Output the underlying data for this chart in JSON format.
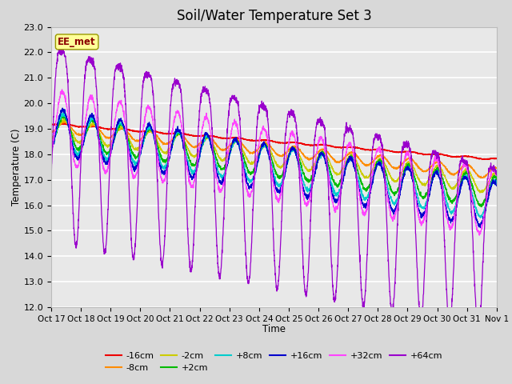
{
  "title": "Soil/Water Temperature Set 3",
  "xlabel": "Time",
  "ylabel": "Temperature (C)",
  "ylim": [
    12.0,
    23.0
  ],
  "yticks": [
    12.0,
    13.0,
    14.0,
    15.0,
    16.0,
    17.0,
    18.0,
    19.0,
    20.0,
    21.0,
    22.0,
    23.0
  ],
  "xtick_labels": [
    "Oct 17",
    "Oct 18",
    "Oct 19",
    "Oct 20",
    "Oct 21",
    "Oct 22",
    "Oct 23",
    "Oct 24",
    "Oct 25",
    "Oct 26",
    "Oct 27",
    "Oct 28",
    "Oct 29",
    "Oct 30",
    "Oct 31",
    "Nov 1"
  ],
  "num_days": 15.5,
  "annotation": "EE_met",
  "annotation_color": "#8B0000",
  "annotation_bg": "#FFFF99",
  "background_color": "#D8D8D8",
  "plot_bg_color": "#E8E8E8",
  "grid_color": "#FFFFFF",
  "title_fontsize": 12,
  "series_params": [
    [
      "-16cm",
      "#EE0000",
      19.2,
      17.8,
      0.03,
      -1.5
    ],
    [
      "-8cm",
      "#FF8C00",
      19.1,
      17.25,
      0.22,
      -1.4
    ],
    [
      "-2cm",
      "#CCCC00",
      19.0,
      16.85,
      0.4,
      -1.3
    ],
    [
      "+2cm",
      "#00BB00",
      18.95,
      16.5,
      0.6,
      -1.2
    ],
    [
      "+8cm",
      "#00CCCC",
      18.9,
      16.2,
      0.75,
      -1.1
    ],
    [
      "+16cm",
      "#0000CC",
      18.9,
      16.0,
      0.9,
      -1.0
    ],
    [
      "+32cm",
      "#FF44FF",
      19.1,
      16.1,
      1.45,
      -0.9
    ],
    [
      "+64cm",
      "#9900CC",
      19.3,
      15.0,
      3.8,
      -0.7
    ]
  ]
}
